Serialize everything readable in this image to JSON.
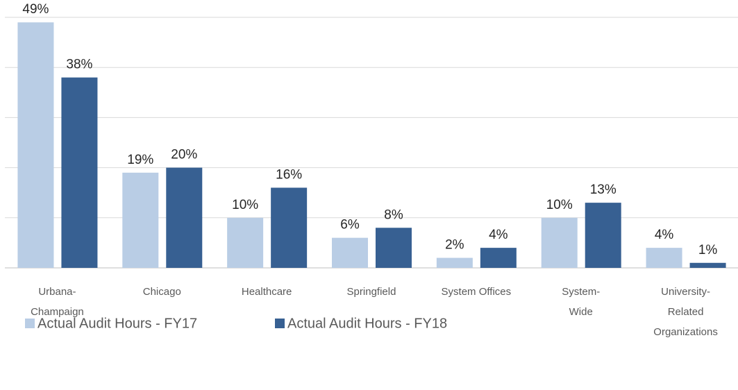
{
  "chart_data": {
    "type": "bar",
    "categories": [
      "Urbana-Champaign",
      "Chicago",
      "Healthcare",
      "Springfield",
      "System Offices",
      "System-Wide",
      "University-Related Organizations"
    ],
    "series": [
      {
        "name": "Actual Audit Hours - FY17",
        "color": "#b9cde5",
        "values": [
          49,
          19,
          10,
          6,
          2,
          10,
          4
        ],
        "value_labels": [
          "49%",
          "19%",
          "10%",
          "6%",
          "2%",
          "10%",
          "4%"
        ]
      },
      {
        "name": "Actual Audit Hours - FY18",
        "color": "#376092",
        "values": [
          38,
          20,
          16,
          8,
          4,
          13,
          1
        ],
        "value_labels": [
          "38%",
          "20%",
          "16%",
          "8%",
          "4%",
          "13%",
          "1%"
        ]
      }
    ],
    "ylim": [
      0,
      50
    ],
    "yticks": [
      0,
      10,
      20,
      30,
      40,
      50
    ],
    "grid": true,
    "legend": "bottom-left"
  }
}
